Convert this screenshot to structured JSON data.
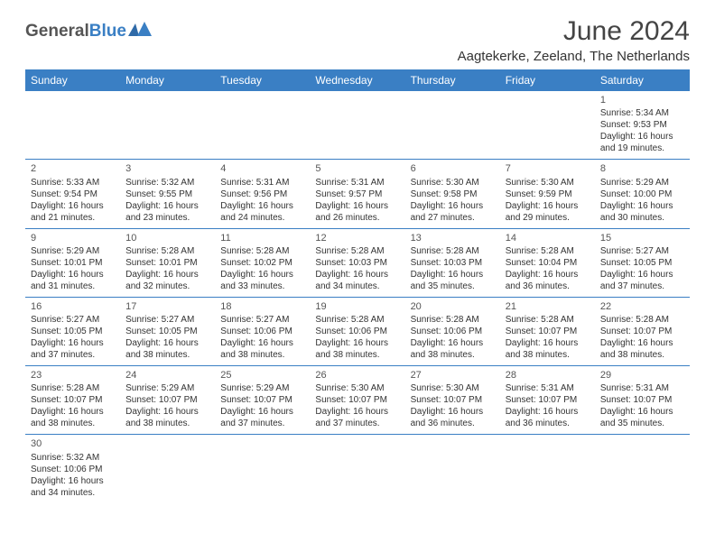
{
  "logo": {
    "general": "General",
    "blue": "Blue"
  },
  "header": {
    "title": "June 2024",
    "location": "Aagtekerke, Zeeland, The Netherlands"
  },
  "colors": {
    "accent": "#3a7fc4",
    "background": "#ffffff",
    "text": "#333333"
  },
  "calendar": {
    "weekdays": [
      "Sunday",
      "Monday",
      "Tuesday",
      "Wednesday",
      "Thursday",
      "Friday",
      "Saturday"
    ],
    "weeks": [
      [
        null,
        null,
        null,
        null,
        null,
        null,
        {
          "n": "1",
          "sr": "Sunrise: 5:34 AM",
          "ss": "Sunset: 9:53 PM",
          "d1": "Daylight: 16 hours",
          "d2": "and 19 minutes."
        }
      ],
      [
        {
          "n": "2",
          "sr": "Sunrise: 5:33 AM",
          "ss": "Sunset: 9:54 PM",
          "d1": "Daylight: 16 hours",
          "d2": "and 21 minutes."
        },
        {
          "n": "3",
          "sr": "Sunrise: 5:32 AM",
          "ss": "Sunset: 9:55 PM",
          "d1": "Daylight: 16 hours",
          "d2": "and 23 minutes."
        },
        {
          "n": "4",
          "sr": "Sunrise: 5:31 AM",
          "ss": "Sunset: 9:56 PM",
          "d1": "Daylight: 16 hours",
          "d2": "and 24 minutes."
        },
        {
          "n": "5",
          "sr": "Sunrise: 5:31 AM",
          "ss": "Sunset: 9:57 PM",
          "d1": "Daylight: 16 hours",
          "d2": "and 26 minutes."
        },
        {
          "n": "6",
          "sr": "Sunrise: 5:30 AM",
          "ss": "Sunset: 9:58 PM",
          "d1": "Daylight: 16 hours",
          "d2": "and 27 minutes."
        },
        {
          "n": "7",
          "sr": "Sunrise: 5:30 AM",
          "ss": "Sunset: 9:59 PM",
          "d1": "Daylight: 16 hours",
          "d2": "and 29 minutes."
        },
        {
          "n": "8",
          "sr": "Sunrise: 5:29 AM",
          "ss": "Sunset: 10:00 PM",
          "d1": "Daylight: 16 hours",
          "d2": "and 30 minutes."
        }
      ],
      [
        {
          "n": "9",
          "sr": "Sunrise: 5:29 AM",
          "ss": "Sunset: 10:01 PM",
          "d1": "Daylight: 16 hours",
          "d2": "and 31 minutes."
        },
        {
          "n": "10",
          "sr": "Sunrise: 5:28 AM",
          "ss": "Sunset: 10:01 PM",
          "d1": "Daylight: 16 hours",
          "d2": "and 32 minutes."
        },
        {
          "n": "11",
          "sr": "Sunrise: 5:28 AM",
          "ss": "Sunset: 10:02 PM",
          "d1": "Daylight: 16 hours",
          "d2": "and 33 minutes."
        },
        {
          "n": "12",
          "sr": "Sunrise: 5:28 AM",
          "ss": "Sunset: 10:03 PM",
          "d1": "Daylight: 16 hours",
          "d2": "and 34 minutes."
        },
        {
          "n": "13",
          "sr": "Sunrise: 5:28 AM",
          "ss": "Sunset: 10:03 PM",
          "d1": "Daylight: 16 hours",
          "d2": "and 35 minutes."
        },
        {
          "n": "14",
          "sr": "Sunrise: 5:28 AM",
          "ss": "Sunset: 10:04 PM",
          "d1": "Daylight: 16 hours",
          "d2": "and 36 minutes."
        },
        {
          "n": "15",
          "sr": "Sunrise: 5:27 AM",
          "ss": "Sunset: 10:05 PM",
          "d1": "Daylight: 16 hours",
          "d2": "and 37 minutes."
        }
      ],
      [
        {
          "n": "16",
          "sr": "Sunrise: 5:27 AM",
          "ss": "Sunset: 10:05 PM",
          "d1": "Daylight: 16 hours",
          "d2": "and 37 minutes."
        },
        {
          "n": "17",
          "sr": "Sunrise: 5:27 AM",
          "ss": "Sunset: 10:05 PM",
          "d1": "Daylight: 16 hours",
          "d2": "and 38 minutes."
        },
        {
          "n": "18",
          "sr": "Sunrise: 5:27 AM",
          "ss": "Sunset: 10:06 PM",
          "d1": "Daylight: 16 hours",
          "d2": "and 38 minutes."
        },
        {
          "n": "19",
          "sr": "Sunrise: 5:28 AM",
          "ss": "Sunset: 10:06 PM",
          "d1": "Daylight: 16 hours",
          "d2": "and 38 minutes."
        },
        {
          "n": "20",
          "sr": "Sunrise: 5:28 AM",
          "ss": "Sunset: 10:06 PM",
          "d1": "Daylight: 16 hours",
          "d2": "and 38 minutes."
        },
        {
          "n": "21",
          "sr": "Sunrise: 5:28 AM",
          "ss": "Sunset: 10:07 PM",
          "d1": "Daylight: 16 hours",
          "d2": "and 38 minutes."
        },
        {
          "n": "22",
          "sr": "Sunrise: 5:28 AM",
          "ss": "Sunset: 10:07 PM",
          "d1": "Daylight: 16 hours",
          "d2": "and 38 minutes."
        }
      ],
      [
        {
          "n": "23",
          "sr": "Sunrise: 5:28 AM",
          "ss": "Sunset: 10:07 PM",
          "d1": "Daylight: 16 hours",
          "d2": "and 38 minutes."
        },
        {
          "n": "24",
          "sr": "Sunrise: 5:29 AM",
          "ss": "Sunset: 10:07 PM",
          "d1": "Daylight: 16 hours",
          "d2": "and 38 minutes."
        },
        {
          "n": "25",
          "sr": "Sunrise: 5:29 AM",
          "ss": "Sunset: 10:07 PM",
          "d1": "Daylight: 16 hours",
          "d2": "and 37 minutes."
        },
        {
          "n": "26",
          "sr": "Sunrise: 5:30 AM",
          "ss": "Sunset: 10:07 PM",
          "d1": "Daylight: 16 hours",
          "d2": "and 37 minutes."
        },
        {
          "n": "27",
          "sr": "Sunrise: 5:30 AM",
          "ss": "Sunset: 10:07 PM",
          "d1": "Daylight: 16 hours",
          "d2": "and 36 minutes."
        },
        {
          "n": "28",
          "sr": "Sunrise: 5:31 AM",
          "ss": "Sunset: 10:07 PM",
          "d1": "Daylight: 16 hours",
          "d2": "and 36 minutes."
        },
        {
          "n": "29",
          "sr": "Sunrise: 5:31 AM",
          "ss": "Sunset: 10:07 PM",
          "d1": "Daylight: 16 hours",
          "d2": "and 35 minutes."
        }
      ],
      [
        {
          "n": "30",
          "sr": "Sunrise: 5:32 AM",
          "ss": "Sunset: 10:06 PM",
          "d1": "Daylight: 16 hours",
          "d2": "and 34 minutes."
        },
        null,
        null,
        null,
        null,
        null,
        null
      ]
    ]
  }
}
